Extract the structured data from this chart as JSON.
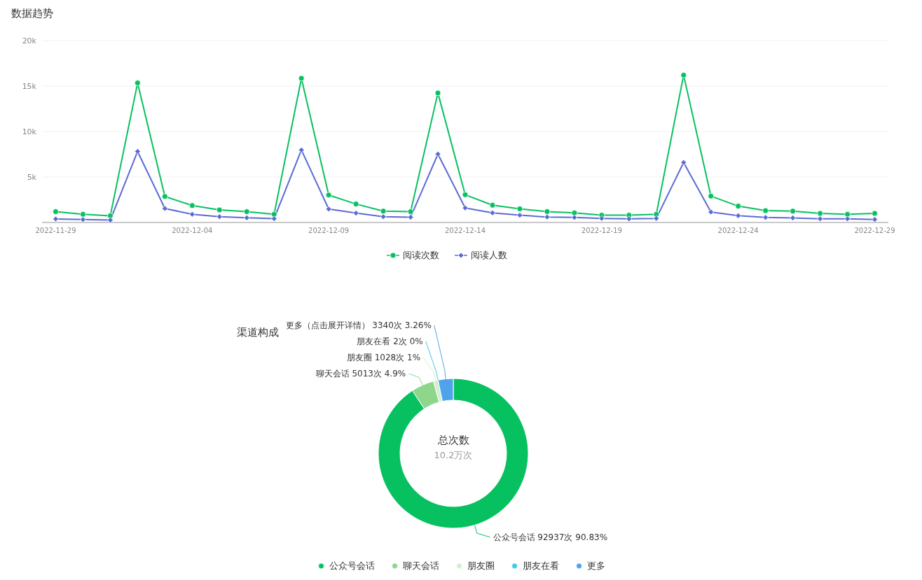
{
  "chart_data": [
    {
      "type": "line",
      "title": "数据趋势",
      "x": [
        "2022-11-29",
        "2022-11-30",
        "2022-12-01",
        "2022-12-02",
        "2022-12-03",
        "2022-12-04",
        "2022-12-05",
        "2022-12-06",
        "2022-12-07",
        "2022-12-08",
        "2022-12-09",
        "2022-12-10",
        "2022-12-11",
        "2022-12-12",
        "2022-12-13",
        "2022-12-14",
        "2022-12-15",
        "2022-12-16",
        "2022-12-17",
        "2022-12-18",
        "2022-12-19",
        "2022-12-20",
        "2022-12-21",
        "2022-12-22",
        "2022-12-23",
        "2022-12-24",
        "2022-12-25",
        "2022-12-26",
        "2022-12-27",
        "2022-12-28",
        "2022-12-29"
      ],
      "series": [
        {
          "name": "阅读次数",
          "color": "#07c160",
          "marker": "circle",
          "values": [
            1190,
            900,
            740,
            15340,
            2860,
            1860,
            1380,
            1190,
            900,
            15850,
            3020,
            2030,
            1250,
            1190,
            14240,
            3050,
            1900,
            1500,
            1200,
            1050,
            800,
            800,
            900,
            16200,
            2900,
            1800,
            1300,
            1250,
            1000,
            900,
            1000
          ]
        },
        {
          "name": "阅读人数",
          "color": "#5b6bd5",
          "marker": "diamond",
          "values": [
            390,
            320,
            260,
            7810,
            1540,
            900,
            640,
            510,
            420,
            7970,
            1480,
            1030,
            640,
            580,
            7520,
            1600,
            1050,
            800,
            600,
            550,
            450,
            400,
            450,
            6600,
            1150,
            750,
            550,
            500,
            400,
            400,
            330
          ]
        }
      ],
      "xlim": [
        "2022-11-28T12:00",
        "2022-12-29T12:00"
      ],
      "xticks": [
        "2022-11-29",
        "2022-12-04",
        "2022-12-09",
        "2022-12-14",
        "2022-12-19",
        "2022-12-24",
        "2022-12-29"
      ],
      "ylim": [
        0,
        20000
      ],
      "yticks": [
        {
          "value": 0,
          "label": null
        },
        {
          "value": 5000,
          "label": "5k"
        },
        {
          "value": 10000,
          "label": "10k"
        },
        {
          "value": 15000,
          "label": "15k"
        },
        {
          "value": 20000,
          "label": "20k"
        }
      ],
      "grid": "y",
      "legend": "bottom",
      "line_style": "solid"
    },
    {
      "type": "donut",
      "title": "渠道构成",
      "categories": [
        "公众号会话",
        "聊天会话",
        "朋友圈",
        "朋友在看",
        "更多"
      ],
      "values": [
        92937,
        5013,
        1028,
        2,
        3340
      ],
      "colors": [
        "#07c160",
        "#8dd68b",
        "#d2efd2",
        "#3ecce0",
        "#4fa3ea"
      ],
      "value_labels": [
        "公众号会话 92937次 90.83%",
        "聊天会话 5013次 4.9%",
        "朋友圈 1028次 1%",
        "朋友在看 2次 0%",
        "更多（点击展开详情） 3340次 3.26%"
      ],
      "annotations": [
        "总次数",
        "10.2万次"
      ],
      "legend": "bottom"
    }
  ]
}
